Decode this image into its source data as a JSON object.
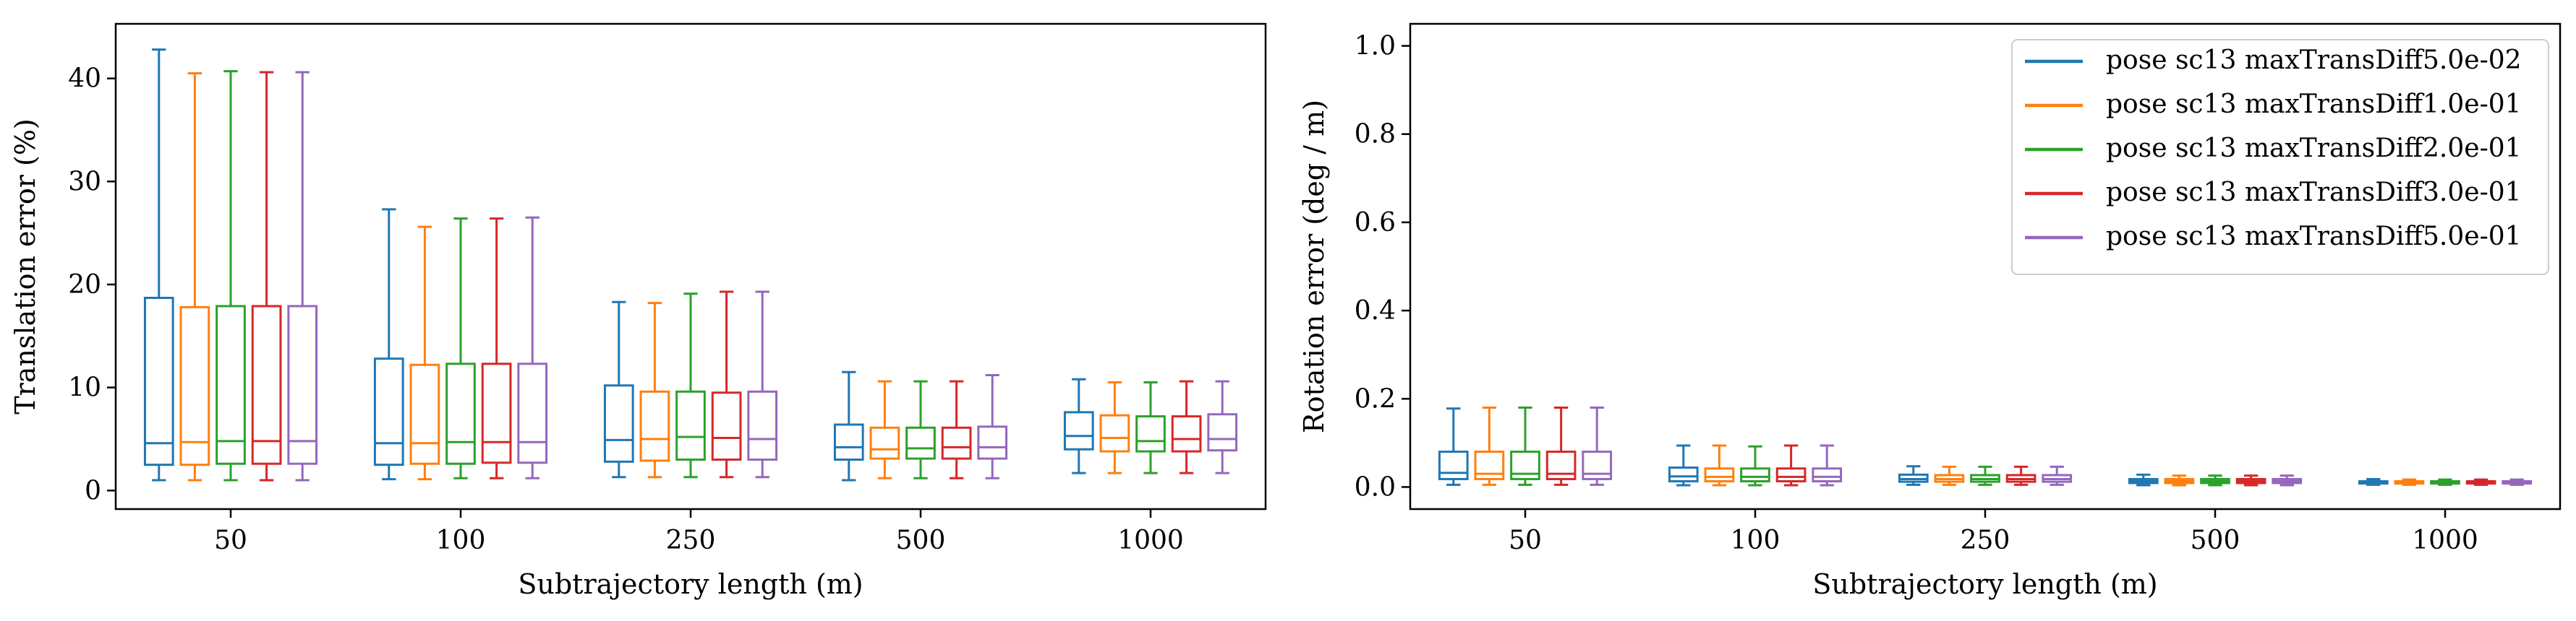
{
  "chart_data": [
    {
      "type": "box",
      "xlabel": "Subtrajectory length (m)",
      "ylabel": "Translation error (%)",
      "ylim": [
        -1.8,
        45.3
      ],
      "yticks": [
        0,
        10,
        20,
        30,
        40
      ],
      "categories": [
        "50",
        "100",
        "250",
        "500",
        "1000"
      ],
      "legend": false,
      "series": [
        {
          "color": "#1f77b4",
          "boxes": [
            {
              "whislo": 1.0,
              "q1": 2.5,
              "med": 4.6,
              "q3": 18.7,
              "whishi": 42.8
            },
            {
              "whislo": 1.1,
              "q1": 2.5,
              "med": 4.6,
              "q3": 12.8,
              "whishi": 27.3
            },
            {
              "whislo": 1.3,
              "q1": 2.8,
              "med": 4.9,
              "q3": 10.2,
              "whishi": 18.3
            },
            {
              "whislo": 1.0,
              "q1": 3.0,
              "med": 4.2,
              "q3": 6.4,
              "whishi": 11.5
            },
            {
              "whislo": 1.7,
              "q1": 4.0,
              "med": 5.3,
              "q3": 7.6,
              "whishi": 10.8
            }
          ]
        },
        {
          "color": "#ff7f0e",
          "boxes": [
            {
              "whislo": 1.0,
              "q1": 2.5,
              "med": 4.7,
              "q3": 17.8,
              "whishi": 40.5
            },
            {
              "whislo": 1.1,
              "q1": 2.6,
              "med": 4.6,
              "q3": 12.2,
              "whishi": 25.6
            },
            {
              "whislo": 1.3,
              "q1": 2.9,
              "med": 5.0,
              "q3": 9.6,
              "whishi": 18.2
            },
            {
              "whislo": 1.2,
              "q1": 3.1,
              "med": 4.0,
              "q3": 6.1,
              "whishi": 10.6
            },
            {
              "whislo": 1.7,
              "q1": 3.8,
              "med": 5.1,
              "q3": 7.3,
              "whishi": 10.5
            }
          ]
        },
        {
          "color": "#2ca02c",
          "boxes": [
            {
              "whislo": 1.0,
              "q1": 2.6,
              "med": 4.8,
              "q3": 17.9,
              "whishi": 40.7
            },
            {
              "whislo": 1.2,
              "q1": 2.6,
              "med": 4.7,
              "q3": 12.3,
              "whishi": 26.4
            },
            {
              "whislo": 1.3,
              "q1": 3.0,
              "med": 5.2,
              "q3": 9.6,
              "whishi": 19.1
            },
            {
              "whislo": 1.2,
              "q1": 3.1,
              "med": 4.1,
              "q3": 6.1,
              "whishi": 10.6
            },
            {
              "whislo": 1.7,
              "q1": 3.8,
              "med": 4.8,
              "q3": 7.2,
              "whishi": 10.5
            }
          ]
        },
        {
          "color": "#d62728",
          "boxes": [
            {
              "whislo": 1.0,
              "q1": 2.6,
              "med": 4.8,
              "q3": 17.9,
              "whishi": 40.6
            },
            {
              "whislo": 1.2,
              "q1": 2.7,
              "med": 4.7,
              "q3": 12.3,
              "whishi": 26.4
            },
            {
              "whislo": 1.3,
              "q1": 3.0,
              "med": 5.1,
              "q3": 9.5,
              "whishi": 19.3
            },
            {
              "whislo": 1.2,
              "q1": 3.1,
              "med": 4.2,
              "q3": 6.1,
              "whishi": 10.6
            },
            {
              "whislo": 1.7,
              "q1": 3.8,
              "med": 5.0,
              "q3": 7.2,
              "whishi": 10.6
            }
          ]
        },
        {
          "color": "#9467bd",
          "boxes": [
            {
              "whislo": 1.0,
              "q1": 2.6,
              "med": 4.8,
              "q3": 17.9,
              "whishi": 40.6
            },
            {
              "whislo": 1.2,
              "q1": 2.7,
              "med": 4.7,
              "q3": 12.3,
              "whishi": 26.5
            },
            {
              "whislo": 1.3,
              "q1": 3.0,
              "med": 5.0,
              "q3": 9.6,
              "whishi": 19.3
            },
            {
              "whislo": 1.2,
              "q1": 3.1,
              "med": 4.2,
              "q3": 6.2,
              "whishi": 11.2
            },
            {
              "whislo": 1.7,
              "q1": 3.9,
              "med": 5.0,
              "q3": 7.4,
              "whishi": 10.6
            }
          ]
        }
      ]
    },
    {
      "type": "box",
      "xlabel": "Subtrajectory length (m)",
      "ylabel": "Rotation error (deg / m)",
      "ylim": [
        -0.05,
        1.05
      ],
      "yticks": [
        0.0,
        0.2,
        0.4,
        0.6,
        0.8,
        1.0
      ],
      "categories": [
        "50",
        "100",
        "250",
        "500",
        "1000"
      ],
      "legend": "top-right",
      "series": [
        {
          "name": "pose sc13 maxTransDiff5.0e-02",
          "color": "#1f77b4",
          "boxes": [
            {
              "whislo": 0.005,
              "q1": 0.018,
              "med": 0.032,
              "q3": 0.08,
              "whishi": 0.178
            },
            {
              "whislo": 0.004,
              "q1": 0.013,
              "med": 0.024,
              "q3": 0.044,
              "whishi": 0.094
            },
            {
              "whislo": 0.005,
              "q1": 0.012,
              "med": 0.018,
              "q3": 0.028,
              "whishi": 0.047
            },
            {
              "whislo": 0.004,
              "q1": 0.009,
              "med": 0.013,
              "q3": 0.018,
              "whishi": 0.028
            },
            {
              "whislo": 0.005,
              "q1": 0.008,
              "med": 0.01,
              "q3": 0.013,
              "whishi": 0.018
            }
          ]
        },
        {
          "name": "pose sc13 maxTransDiff1.0e-01",
          "color": "#ff7f0e",
          "boxes": [
            {
              "whislo": 0.005,
              "q1": 0.018,
              "med": 0.03,
              "q3": 0.08,
              "whishi": 0.18
            },
            {
              "whislo": 0.004,
              "q1": 0.013,
              "med": 0.023,
              "q3": 0.042,
              "whishi": 0.094
            },
            {
              "whislo": 0.005,
              "q1": 0.012,
              "med": 0.018,
              "q3": 0.027,
              "whishi": 0.046
            },
            {
              "whislo": 0.004,
              "q1": 0.009,
              "med": 0.013,
              "q3": 0.018,
              "whishi": 0.026
            },
            {
              "whislo": 0.005,
              "q1": 0.008,
              "med": 0.01,
              "q3": 0.013,
              "whishi": 0.017
            }
          ]
        },
        {
          "name": "pose sc13 maxTransDiff2.0e-01",
          "color": "#2ca02c",
          "boxes": [
            {
              "whislo": 0.005,
              "q1": 0.018,
              "med": 0.03,
              "q3": 0.08,
              "whishi": 0.18
            },
            {
              "whislo": 0.004,
              "q1": 0.013,
              "med": 0.023,
              "q3": 0.042,
              "whishi": 0.092
            },
            {
              "whislo": 0.005,
              "q1": 0.012,
              "med": 0.018,
              "q3": 0.027,
              "whishi": 0.046
            },
            {
              "whislo": 0.004,
              "q1": 0.009,
              "med": 0.013,
              "q3": 0.018,
              "whishi": 0.026
            },
            {
              "whislo": 0.005,
              "q1": 0.008,
              "med": 0.01,
              "q3": 0.013,
              "whishi": 0.017
            }
          ]
        },
        {
          "name": "pose sc13 maxTransDiff3.0e-01",
          "color": "#d62728",
          "boxes": [
            {
              "whislo": 0.005,
              "q1": 0.018,
              "med": 0.03,
              "q3": 0.08,
              "whishi": 0.18
            },
            {
              "whislo": 0.004,
              "q1": 0.013,
              "med": 0.023,
              "q3": 0.042,
              "whishi": 0.094
            },
            {
              "whislo": 0.005,
              "q1": 0.012,
              "med": 0.018,
              "q3": 0.027,
              "whishi": 0.046
            },
            {
              "whislo": 0.004,
              "q1": 0.009,
              "med": 0.013,
              "q3": 0.018,
              "whishi": 0.026
            },
            {
              "whislo": 0.005,
              "q1": 0.008,
              "med": 0.01,
              "q3": 0.013,
              "whishi": 0.017
            }
          ]
        },
        {
          "name": "pose sc13 maxTransDiff5.0e-01",
          "color": "#9467bd",
          "boxes": [
            {
              "whislo": 0.005,
              "q1": 0.018,
              "med": 0.03,
              "q3": 0.08,
              "whishi": 0.18
            },
            {
              "whislo": 0.004,
              "q1": 0.013,
              "med": 0.023,
              "q3": 0.042,
              "whishi": 0.094
            },
            {
              "whislo": 0.005,
              "q1": 0.012,
              "med": 0.018,
              "q3": 0.027,
              "whishi": 0.046
            },
            {
              "whislo": 0.004,
              "q1": 0.009,
              "med": 0.013,
              "q3": 0.018,
              "whishi": 0.026
            },
            {
              "whislo": 0.005,
              "q1": 0.008,
              "med": 0.01,
              "q3": 0.013,
              "whishi": 0.017
            }
          ]
        }
      ]
    }
  ]
}
